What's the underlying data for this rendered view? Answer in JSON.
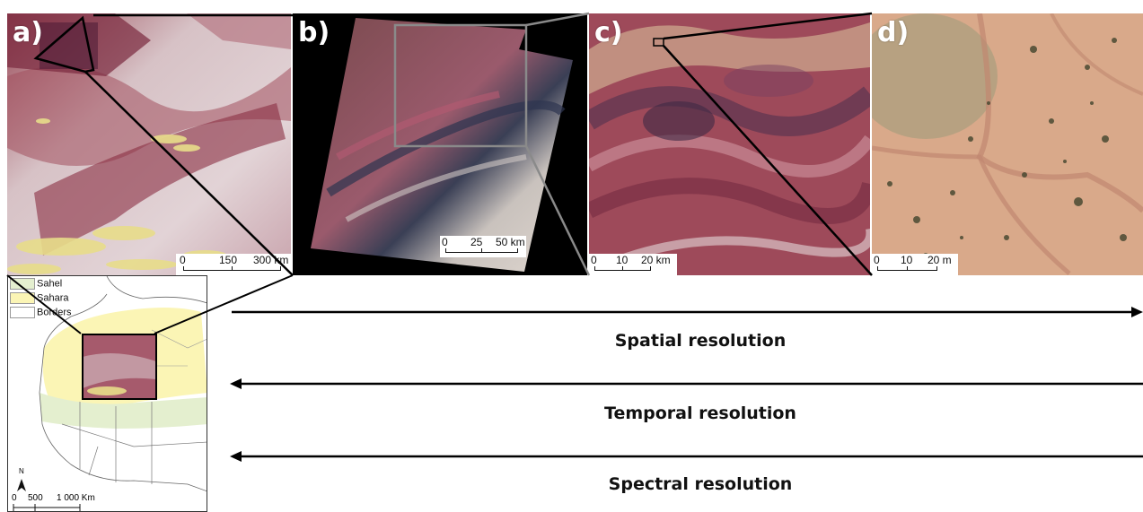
{
  "panels": {
    "a": {
      "label": "a)",
      "scale_ticks": [
        "0",
        "150",
        "300 km"
      ]
    },
    "b": {
      "label": "b)",
      "scale_ticks": [
        "0",
        "25",
        "50 km"
      ]
    },
    "c": {
      "label": "c)",
      "scale_ticks": [
        "0",
        "10",
        "20 km"
      ]
    },
    "d": {
      "label": "d)",
      "scale_ticks": [
        "0",
        "10",
        "20 m"
      ]
    }
  },
  "locator_map": {
    "legend": [
      {
        "label": "Sahel",
        "color": "#e4efcf"
      },
      {
        "label": "Sahara",
        "color": "#fbf5b5"
      },
      {
        "label": "Borders",
        "color": "#ffffff"
      }
    ],
    "north_label": "N",
    "scale_ticks": [
      "0",
      "500",
      "1 000 Km"
    ]
  },
  "arrows": [
    {
      "label": "Spatial resolution",
      "direction": "right"
    },
    {
      "label": "Temporal resolution",
      "direction": "left"
    },
    {
      "label": "Spectral resolution",
      "direction": "left"
    }
  ],
  "colors": {
    "sahel": "#e4efcf",
    "sahara": "#fbf5b5",
    "desert_red": "#8e3a4a",
    "sand": "#d8a88a"
  }
}
